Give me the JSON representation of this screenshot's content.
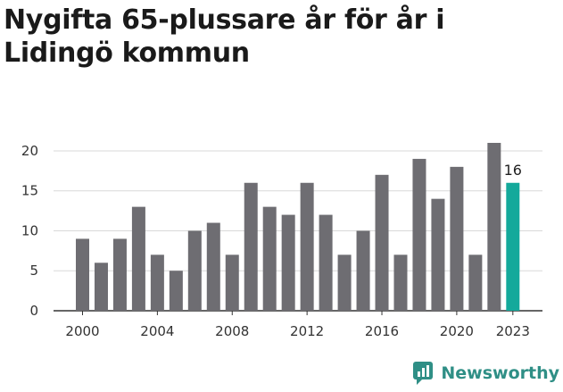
{
  "title": "Nygifta 65-plussare år för år i Lidingö kommun",
  "brand": {
    "name": "Newsworthy",
    "icon": "newsworthy-logo-icon"
  },
  "colors": {
    "bar": "#6e6d72",
    "highlight": "#14a99b",
    "grid": "#d9d9d9",
    "axis": "#333333",
    "brand": "#2f8f86"
  },
  "chart_data": {
    "type": "bar",
    "title": "Nygifta 65-plussare år för år i Lidingö kommun",
    "xlabel": "",
    "ylabel": "",
    "categories": [
      "2000",
      "2001",
      "2002",
      "2003",
      "2004",
      "2005",
      "2006",
      "2007",
      "2008",
      "2009",
      "2010",
      "2011",
      "2012",
      "2013",
      "2014",
      "2015",
      "2016",
      "2017",
      "2018",
      "2019",
      "2020",
      "2021",
      "2022",
      "2023"
    ],
    "values": [
      9,
      6,
      9,
      13,
      7,
      5,
      10,
      11,
      7,
      16,
      13,
      12,
      16,
      12,
      7,
      10,
      17,
      7,
      19,
      14,
      18,
      7,
      21,
      16
    ],
    "highlight_index": 23,
    "highlight_label": "16",
    "ylim": [
      0,
      21
    ],
    "yticks": [
      0,
      5,
      10,
      15,
      20
    ],
    "xtick_labels": [
      "2000",
      "2004",
      "2008",
      "2012",
      "2016",
      "2020",
      "2023"
    ],
    "grid": true
  }
}
